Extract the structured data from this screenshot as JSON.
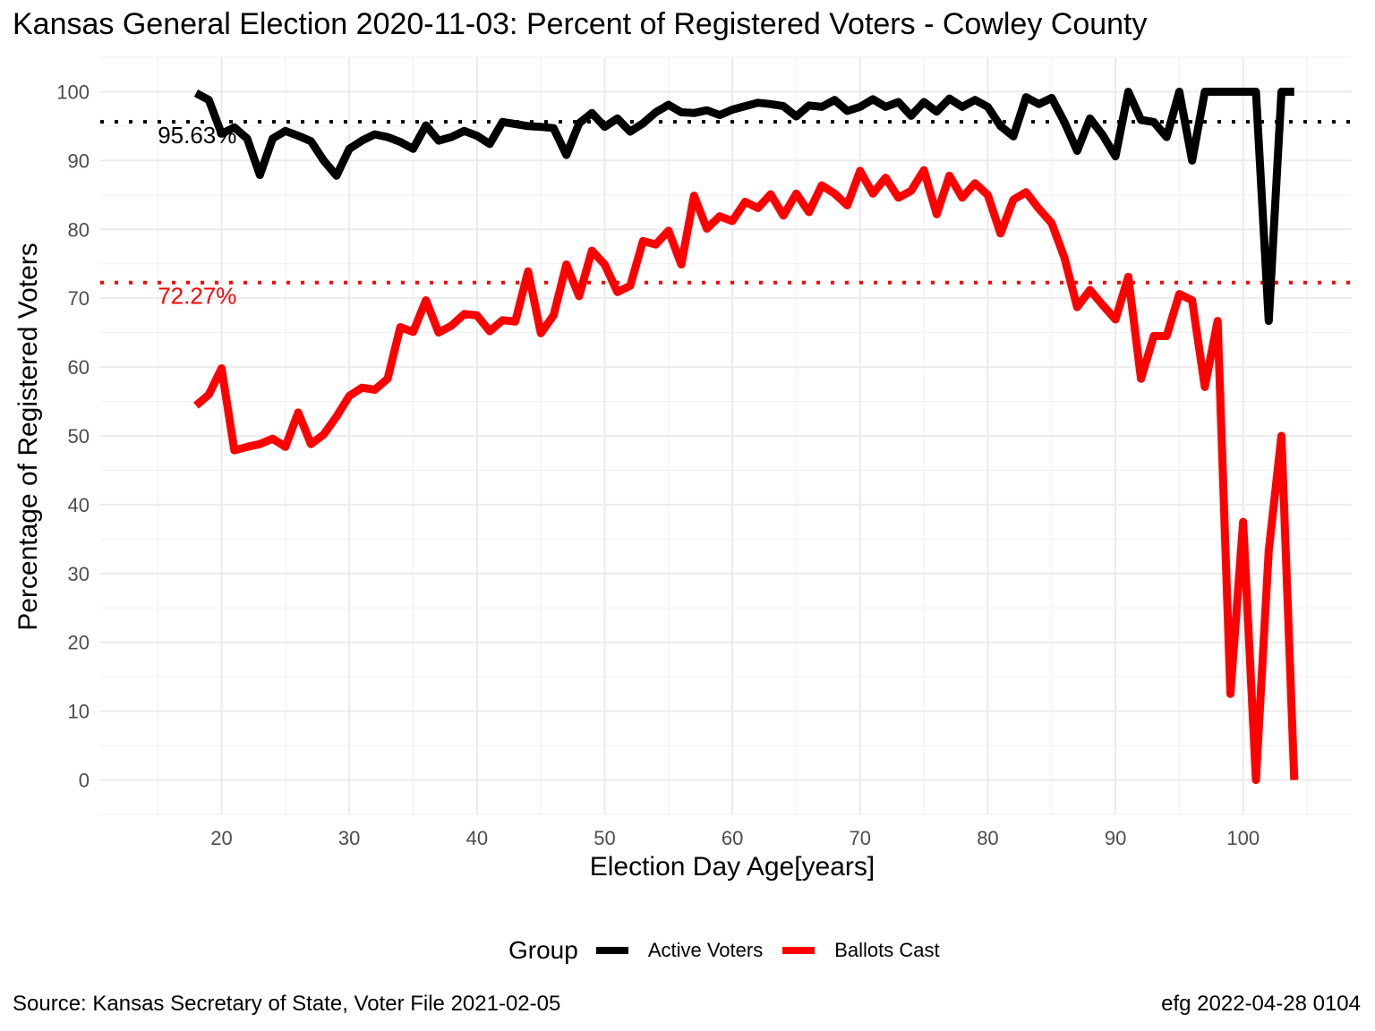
{
  "title": "Kansas General Election 2020-11-03:  Percent of Registered Voters - Cowley County",
  "source": "Source:  Kansas Secretary of State, Voter File  2021-02-05",
  "stamp": "efg 2022-04-28 0104",
  "chart_data": {
    "type": "line",
    "xlabel": "Election Day Age[years]",
    "ylabel": "Percentage of Registered Voters",
    "xlim": [
      10.5,
      108.5
    ],
    "ylim": [
      -5,
      105
    ],
    "xticks": [
      20,
      30,
      40,
      50,
      60,
      70,
      80,
      90,
      100
    ],
    "yticks": [
      0,
      10,
      20,
      30,
      40,
      50,
      60,
      70,
      80,
      90,
      100
    ],
    "grid": true,
    "legend": {
      "position": "bottom",
      "title": "Group"
    },
    "series": [
      {
        "name": "Active Voters",
        "color": "#000000",
        "x": [
          18,
          19,
          20,
          21,
          22,
          23,
          24,
          25,
          26,
          27,
          28,
          29,
          30,
          31,
          32,
          33,
          34,
          35,
          36,
          37,
          38,
          39,
          40,
          41,
          42,
          43,
          44,
          45,
          46,
          47,
          48,
          49,
          50,
          51,
          52,
          53,
          54,
          55,
          56,
          57,
          58,
          59,
          60,
          61,
          62,
          63,
          64,
          65,
          66,
          67,
          68,
          69,
          70,
          71,
          72,
          73,
          74,
          75,
          76,
          77,
          78,
          79,
          80,
          81,
          82,
          83,
          84,
          85,
          86,
          87,
          88,
          89,
          90,
          91,
          92,
          93,
          94,
          95,
          96,
          97,
          98,
          99,
          100,
          101,
          102,
          103,
          104
        ],
        "values": [
          99.8,
          98.8,
          93.9,
          94.8,
          93.2,
          87.9,
          93.2,
          94.3,
          93.6,
          92.8,
          90.0,
          87.8,
          91.7,
          92.9,
          93.8,
          93.4,
          92.7,
          91.7,
          95.1,
          92.9,
          93.4,
          94.3,
          93.6,
          92.4,
          95.6,
          95.3,
          95.0,
          94.9,
          94.7,
          90.8,
          95.4,
          96.9,
          94.9,
          96.1,
          94.2,
          95.4,
          97.0,
          98.1,
          97.0,
          96.9,
          97.3,
          96.6,
          97.4,
          97.9,
          98.4,
          98.2,
          97.9,
          96.4,
          98.0,
          97.8,
          98.8,
          97.2,
          97.8,
          98.9,
          97.8,
          98.5,
          96.5,
          98.5,
          97.1,
          99.0,
          97.8,
          98.8,
          97.8,
          95.0,
          93.5,
          99.2,
          98.2,
          99.1,
          95.6,
          91.4,
          96.1,
          93.7,
          90.6,
          100.0,
          95.9,
          95.6,
          93.4,
          100.0,
          90.0,
          100.0,
          100.0,
          100.0,
          100.0,
          100.0,
          66.7,
          100.0,
          100.0
        ]
      },
      {
        "name": "Ballots Cast",
        "color": "#ff0000",
        "x": [
          18,
          19,
          20,
          21,
          22,
          23,
          24,
          25,
          26,
          27,
          28,
          29,
          30,
          31,
          32,
          33,
          34,
          35,
          36,
          37,
          38,
          39,
          40,
          41,
          42,
          43,
          44,
          45,
          46,
          47,
          48,
          49,
          50,
          51,
          52,
          53,
          54,
          55,
          56,
          57,
          58,
          59,
          60,
          61,
          62,
          63,
          64,
          65,
          66,
          67,
          68,
          69,
          70,
          71,
          72,
          73,
          74,
          75,
          76,
          77,
          78,
          79,
          80,
          81,
          82,
          83,
          84,
          85,
          86,
          87,
          88,
          89,
          90,
          91,
          92,
          93,
          94,
          95,
          96,
          97,
          98,
          99,
          100,
          101,
          102,
          103,
          104
        ],
        "values": [
          54.4,
          56.0,
          59.8,
          47.9,
          48.4,
          48.8,
          49.6,
          48.4,
          53.4,
          48.8,
          50.2,
          52.8,
          55.8,
          57.0,
          56.7,
          58.3,
          65.8,
          65.1,
          69.7,
          65.0,
          66.0,
          67.7,
          67.5,
          65.2,
          66.8,
          66.6,
          73.9,
          64.9,
          67.5,
          74.9,
          70.3,
          76.9,
          74.9,
          70.9,
          71.8,
          78.3,
          77.8,
          79.8,
          74.9,
          84.9,
          80.1,
          81.9,
          81.2,
          84.0,
          83.1,
          85.1,
          82.0,
          85.2,
          82.5,
          86.4,
          85.2,
          83.5,
          88.5,
          85.2,
          87.5,
          84.6,
          85.6,
          88.6,
          82.2,
          87.8,
          84.6,
          86.7,
          85.0,
          79.4,
          84.3,
          85.4,
          83.0,
          80.9,
          75.9,
          68.7,
          71.2,
          69.0,
          66.9,
          73.1,
          58.3,
          64.5,
          64.5,
          70.6,
          69.7,
          57.1,
          66.7,
          12.5,
          37.5,
          0.0,
          33.3,
          50.0,
          0.0
        ]
      }
    ],
    "reference_lines": [
      {
        "y": 95.63,
        "label": "95.63%",
        "color": "#000000"
      },
      {
        "y": 72.27,
        "label": "72.27%",
        "color": "#ff0000"
      }
    ]
  }
}
